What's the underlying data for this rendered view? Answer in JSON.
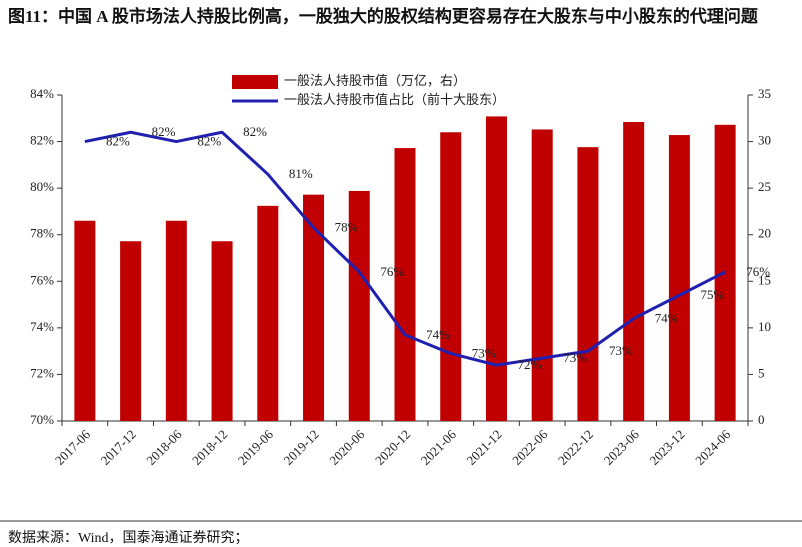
{
  "chart_data": {
    "type": "bar-line",
    "title": "图11：中国 A 股市场法人持股比例高，一股独大的股权结构更容易存在大股东与中小股东的代理问题",
    "source": "数据来源：Wind，国泰海通证券研究；",
    "categories": [
      "2017-06",
      "2017-12",
      "2018-06",
      "2018-12",
      "2019-06",
      "2019-12",
      "2020-06",
      "2020-12",
      "2021-06",
      "2021-12",
      "2022-06",
      "2022-12",
      "2023-06",
      "2023-12",
      "2024-06"
    ],
    "series": [
      {
        "name": "一般法人持股市值（万亿，右）",
        "type": "bar",
        "axis": "y2",
        "color": "#c00000",
        "values": [
          21.5,
          19.3,
          21.5,
          19.3,
          23.1,
          24.3,
          24.7,
          29.3,
          31.0,
          32.7,
          31.3,
          29.4,
          32.1,
          30.7,
          31.8
        ]
      },
      {
        "name": "一般法人持股市值占比（前十大股东）",
        "type": "line",
        "color": "#2020b0",
        "values": [
          82.0,
          82.4,
          82.0,
          82.4,
          80.6,
          78.3,
          76.4,
          73.7,
          72.9,
          72.4,
          72.7,
          73.0,
          74.4,
          75.4,
          76.4
        ],
        "value_labels": [
          "82%",
          "82%",
          "82%",
          "82%",
          "81%",
          "78%",
          "76%",
          "74%",
          "73%",
          "72%",
          "73%",
          "73%",
          "74%",
          "75%",
          "76%"
        ]
      }
    ],
    "ylim": [
      70,
      84
    ],
    "yticks": [
      {
        "value": 70,
        "label": "70%"
      },
      {
        "value": 72,
        "label": "72%"
      },
      {
        "value": 74,
        "label": "74%"
      },
      {
        "value": 76,
        "label": "76%"
      },
      {
        "value": 78,
        "label": "78%"
      },
      {
        "value": 80,
        "label": "80%"
      },
      {
        "value": 82,
        "label": "82%"
      },
      {
        "value": 84,
        "label": "84%"
      }
    ],
    "y2lim": [
      0,
      35
    ],
    "y2ticks": [
      0,
      5,
      10,
      15,
      20,
      25,
      30,
      35
    ]
  }
}
